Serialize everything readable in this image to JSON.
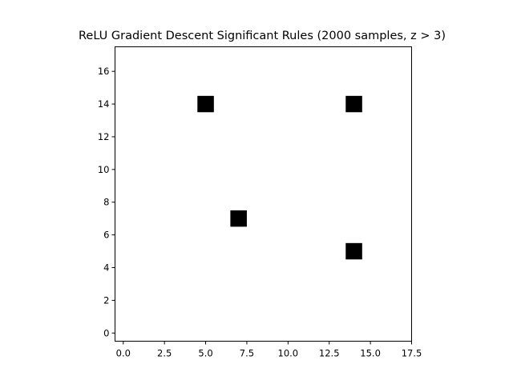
{
  "chart_data": {
    "type": "heatmap",
    "title": "ReLU Gradient Descent Significant Rules (2000 samples, z > 3)",
    "xlabel": "",
    "ylabel": "",
    "grid": false,
    "matrix_shape": [
      18,
      18
    ],
    "background_value": 0,
    "colors": {
      "background": "#ffffff",
      "cell": "#000000",
      "axis": "#000000"
    },
    "cells": [
      {
        "row": 5,
        "col": 14,
        "value": 1
      },
      {
        "row": 7,
        "col": 7,
        "value": 1
      },
      {
        "row": 14,
        "col": 5,
        "value": 1
      },
      {
        "row": 14,
        "col": 14,
        "value": 1
      }
    ],
    "xlim": [
      -0.5,
      17.5
    ],
    "ylim": [
      17.5,
      -0.5
    ],
    "x_ticks": [
      0,
      2.5,
      5,
      7.5,
      10,
      12.5,
      15,
      17.5
    ],
    "x_tick_labels": [
      "0.0",
      "2.5",
      "5.0",
      "7.5",
      "10.0",
      "12.5",
      "15.0",
      "17.5"
    ],
    "y_ticks": [
      0,
      2,
      4,
      6,
      8,
      10,
      12,
      14,
      16
    ],
    "y_tick_labels": [
      "0",
      "2",
      "4",
      "6",
      "8",
      "10",
      "12",
      "14",
      "16"
    ]
  }
}
